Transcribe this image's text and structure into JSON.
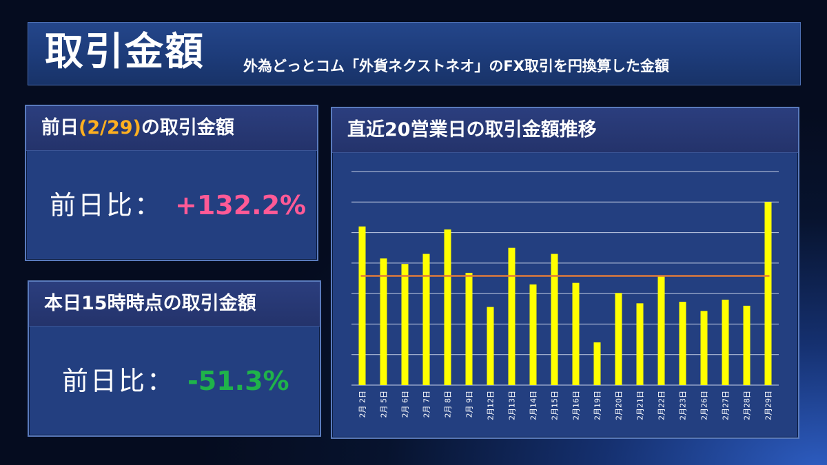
{
  "header": {
    "title": "取引金額",
    "subtitle": "外為どっとコム「外貨ネクストネオ」のFX取引を円換算した金額"
  },
  "prev_panel": {
    "title_pre": "前日",
    "title_date": "(2/29)",
    "title_post": "の取引金額",
    "ratio_label": "前日比：",
    "ratio_value": "+132.2%"
  },
  "today_panel": {
    "title": "本日15時時点の取引金額",
    "ratio_label": "前日比：",
    "ratio_value": "-51.3%"
  },
  "chart_panel": {
    "title": "直近20営業日の取引金額推移"
  },
  "colors": {
    "bar": "#ffff00",
    "average_line": "#e07a3a",
    "positive": "#ff5a96",
    "negative": "#1fb34a",
    "highlight": "#ffb020"
  },
  "chart_data": {
    "type": "bar",
    "categories": [
      "2月 2日",
      "2月 5日",
      "2月 6日",
      "2月 7日",
      "2月 8日",
      "2月 9日",
      "2月12日",
      "2月13日",
      "2月14日",
      "2月15日",
      "2月16日",
      "2月19日",
      "2月20日",
      "2月21日",
      "2月22日",
      "2月23日",
      "2月26日",
      "2月27日",
      "2月28日",
      "2月29日"
    ],
    "series": [
      {
        "values": [
          5.2,
          4.15,
          3.97,
          4.3,
          5.1,
          3.68,
          2.56,
          4.5,
          3.3,
          4.3,
          3.35,
          1.4,
          3.02,
          2.68,
          3.56,
          2.73,
          2.43,
          2.8,
          2.6,
          6.0
        ]
      }
    ],
    "average_line": 3.58,
    "ylim": [
      0,
      7
    ],
    "y_tick_step": 1,
    "y_tick_labels_visible": false,
    "grid": true,
    "legend": "none",
    "xlabel": "",
    "ylabel": ""
  }
}
